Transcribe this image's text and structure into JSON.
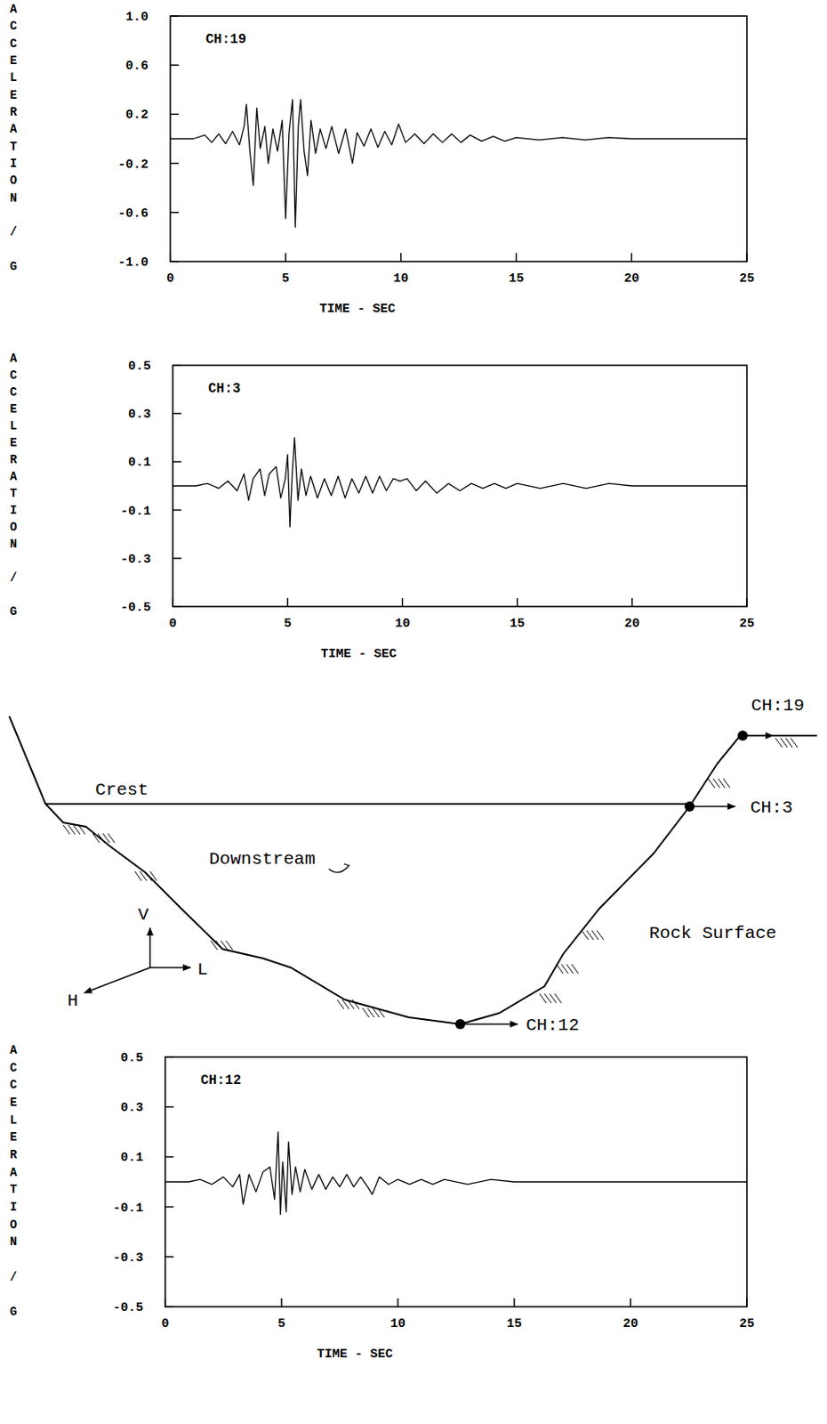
{
  "chart_data": [
    {
      "type": "line",
      "title": "CH:19",
      "xlabel": "TIME - SEC",
      "ylabel": "ACCELERATION / G",
      "color": "#000000",
      "xlim": [
        0,
        25
      ],
      "xticks": [
        0,
        5,
        10,
        15,
        20,
        25
      ],
      "ylim": [
        -1,
        1
      ],
      "yticks": [
        {
          "value": -1,
          "label": "-1.0"
        },
        -0.6,
        -0.2,
        0.2,
        0.6,
        {
          "value": 1,
          "label": "1.0"
        }
      ],
      "x": [
        0,
        1.0,
        1.5,
        1.8,
        2.1,
        2.4,
        2.7,
        3.0,
        3.2,
        3.3,
        3.45,
        3.6,
        3.75,
        3.9,
        4.1,
        4.25,
        4.45,
        4.65,
        4.85,
        5.0,
        5.15,
        5.3,
        5.42,
        5.55,
        5.65,
        5.8,
        5.95,
        6.1,
        6.3,
        6.5,
        6.75,
        7.0,
        7.3,
        7.6,
        7.9,
        8.1,
        8.4,
        8.7,
        9.0,
        9.3,
        9.6,
        9.9,
        10.2,
        10.6,
        11.0,
        11.4,
        11.8,
        12.2,
        12.6,
        13.0,
        13.5,
        14.0,
        14.5,
        15.0,
        16.0,
        17.0,
        18.0,
        19.0,
        20.0,
        25.0
      ],
      "values": [
        0,
        0,
        0.03,
        -0.03,
        0.04,
        -0.04,
        0.06,
        -0.05,
        0.1,
        0.28,
        -0.1,
        -0.38,
        0.25,
        -0.08,
        0.1,
        -0.2,
        0.08,
        -0.1,
        0.15,
        -0.65,
        0.05,
        0.32,
        -0.72,
        0.1,
        0.32,
        -0.1,
        -0.3,
        0.15,
        -0.12,
        0.08,
        -0.08,
        0.1,
        -0.12,
        0.08,
        -0.2,
        0.05,
        -0.06,
        0.08,
        -0.07,
        0.06,
        -0.05,
        0.12,
        -0.03,
        0.04,
        -0.04,
        0.04,
        -0.03,
        0.04,
        -0.03,
        0.03,
        -0.02,
        0.02,
        -0.02,
        0.01,
        -0.01,
        0.01,
        -0.01,
        0.01,
        0,
        0
      ]
    },
    {
      "type": "line",
      "title": "CH:3",
      "xlabel": "TIME - SEC",
      "ylabel": "ACCELERATION / G",
      "color": "#000000",
      "xlim": [
        0,
        25
      ],
      "xticks": [
        0,
        5,
        10,
        15,
        20,
        25
      ],
      "ylim": [
        -0.5,
        0.5
      ],
      "yticks": [
        -0.5,
        -0.3,
        -0.1,
        0.1,
        0.3,
        0.5
      ],
      "x": [
        0,
        1.0,
        1.5,
        2.0,
        2.4,
        2.8,
        3.1,
        3.3,
        3.5,
        3.8,
        4.0,
        4.2,
        4.5,
        4.7,
        4.9,
        5.0,
        5.1,
        5.2,
        5.3,
        5.45,
        5.6,
        5.8,
        6.0,
        6.3,
        6.6,
        6.9,
        7.2,
        7.5,
        7.8,
        8.1,
        8.4,
        8.7,
        9.0,
        9.3,
        9.6,
        9.9,
        10.2,
        10.6,
        11.0,
        11.5,
        12.0,
        12.5,
        13.0,
        13.5,
        14.0,
        14.5,
        15.0,
        16.0,
        17.0,
        18.0,
        19.0,
        20.0,
        25.0
      ],
      "values": [
        0,
        0,
        0.01,
        -0.01,
        0.02,
        -0.02,
        0.05,
        -0.06,
        0.03,
        0.07,
        -0.04,
        0.05,
        0.08,
        -0.05,
        0.03,
        0.13,
        -0.17,
        0.05,
        0.2,
        -0.06,
        0.07,
        -0.04,
        0.04,
        -0.05,
        0.03,
        -0.04,
        0.04,
        -0.05,
        0.03,
        -0.03,
        0.04,
        -0.03,
        0.04,
        -0.02,
        0.03,
        0.02,
        0.03,
        -0.02,
        0.02,
        -0.03,
        0.01,
        -0.02,
        0.01,
        -0.01,
        0.01,
        -0.01,
        0.01,
        -0.01,
        0.01,
        -0.01,
        0.01,
        0,
        0
      ]
    },
    {
      "type": "line",
      "title": "CH:12",
      "xlabel": "TIME - SEC",
      "ylabel": "ACCELERATION / G",
      "color": "#000000",
      "xlim": [
        0,
        25
      ],
      "xticks": [
        0,
        5,
        10,
        15,
        20,
        25
      ],
      "ylim": [
        -0.5,
        0.5
      ],
      "yticks": [
        -0.5,
        -0.3,
        -0.1,
        0.1,
        0.3,
        0.5
      ],
      "x": [
        0,
        1.0,
        1.5,
        2.0,
        2.5,
        2.9,
        3.2,
        3.35,
        3.6,
        3.9,
        4.2,
        4.5,
        4.7,
        4.85,
        4.95,
        5.05,
        5.2,
        5.3,
        5.45,
        5.6,
        5.8,
        6.0,
        6.3,
        6.6,
        6.9,
        7.2,
        7.5,
        7.8,
        8.1,
        8.4,
        8.7,
        8.9,
        9.2,
        9.6,
        10.0,
        10.5,
        11.0,
        11.5,
        12.0,
        13.0,
        14.0,
        15.0,
        17.0,
        20.0,
        25.0
      ],
      "values": [
        0,
        0,
        0.01,
        -0.01,
        0.02,
        -0.02,
        0.03,
        -0.09,
        0.03,
        -0.04,
        0.04,
        0.06,
        -0.07,
        0.2,
        -0.13,
        0.08,
        -0.12,
        0.16,
        -0.05,
        0.06,
        -0.04,
        0.05,
        -0.03,
        0.03,
        -0.03,
        0.02,
        -0.02,
        0.03,
        -0.02,
        0.02,
        -0.02,
        -0.05,
        0.02,
        -0.01,
        0.01,
        -0.01,
        0.01,
        -0.01,
        0.01,
        -0.01,
        0.01,
        0,
        0,
        0,
        0
      ]
    }
  ],
  "diagram": {
    "crest": "Crest",
    "downstream": "Downstream",
    "rock_surface": "Rock Surface",
    "axes": {
      "v": "V",
      "h": "H",
      "l": "L"
    },
    "stations": [
      {
        "label": "CH:19"
      },
      {
        "label": "CH:3"
      },
      {
        "label": "CH:12"
      }
    ]
  }
}
